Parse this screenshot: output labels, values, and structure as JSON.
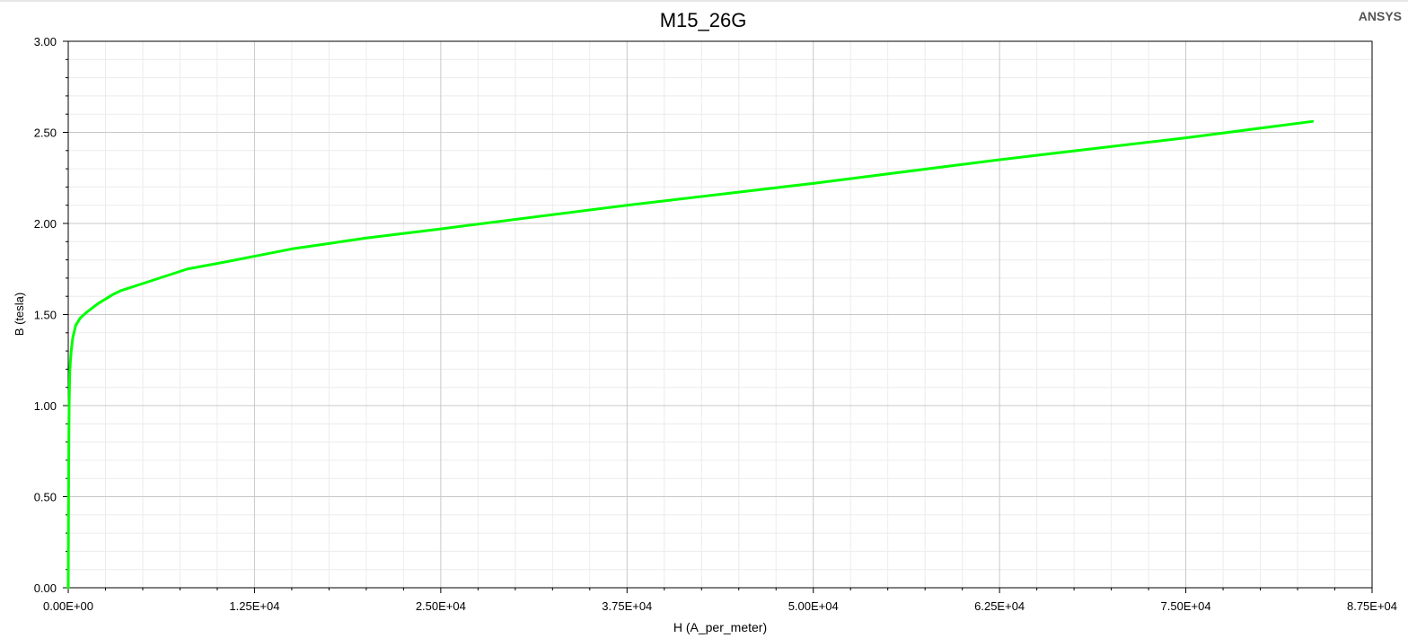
{
  "brand": "ANSYS",
  "chart_data": {
    "type": "line",
    "title": "M15_26G",
    "xlabel": "H (A_per_meter)",
    "ylabel": "B (tesla)",
    "xlim": [
      0,
      87500
    ],
    "ylim": [
      0,
      3.0
    ],
    "x_ticks": [
      "0.00E+00",
      "1.25E+04",
      "2.50E+04",
      "3.75E+04",
      "5.00E+04",
      "6.25E+04",
      "7.50E+04",
      "8.75E+04"
    ],
    "y_ticks": [
      "0.00",
      "0.50",
      "1.00",
      "1.50",
      "2.00",
      "2.50",
      "3.00"
    ],
    "grid": true,
    "series": [
      {
        "color": "#00ff00",
        "x": [
          0,
          20,
          40,
          60,
          100,
          150,
          200,
          300,
          500,
          800,
          1200,
          2000,
          3000,
          3500,
          5000,
          6500,
          8000,
          10000,
          12500,
          15000,
          17500,
          20000,
          25000,
          37500,
          50000,
          62500,
          75000,
          83500
        ],
        "y": [
          0.0,
          0.5,
          0.8,
          1.0,
          1.18,
          1.25,
          1.3,
          1.37,
          1.44,
          1.48,
          1.51,
          1.56,
          1.61,
          1.63,
          1.67,
          1.71,
          1.75,
          1.78,
          1.82,
          1.86,
          1.89,
          1.92,
          1.97,
          2.1,
          2.22,
          2.35,
          2.47,
          2.56
        ]
      }
    ]
  }
}
